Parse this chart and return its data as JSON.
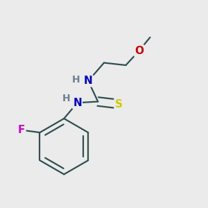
{
  "background_color": "#ebebeb",
  "atom_colors": {
    "C": "#000000",
    "H": "#708090",
    "N": "#0000cc",
    "O": "#cc0000",
    "S": "#cccc00",
    "F": "#cc00cc"
  },
  "bond_color": "#2f4f4f",
  "bond_width": 1.6,
  "figsize": [
    3.0,
    3.0
  ],
  "dpi": 100
}
